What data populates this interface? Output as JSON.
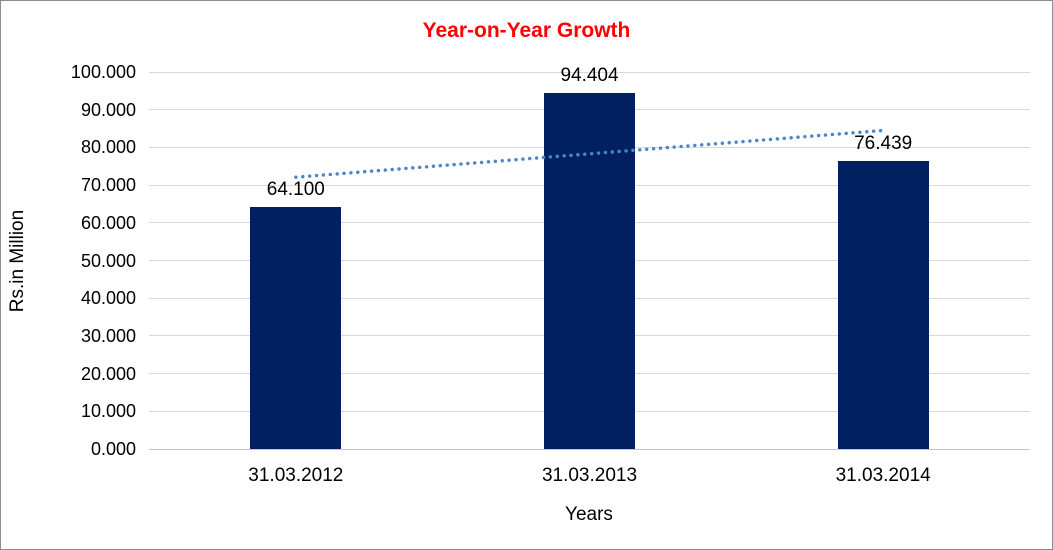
{
  "window": {
    "background": "#ffffff",
    "border_color": "#8c8c8c"
  },
  "chart_data": {
    "type": "bar",
    "title": "Year-on-Year Growth",
    "title_color": "#ff0000",
    "xlabel": "Years",
    "ylabel": "Rs.in Million",
    "categories": [
      "31.03.2012",
      "31.03.2013",
      "31.03.2014"
    ],
    "values": [
      64.1,
      94.404,
      76.439
    ],
    "data_labels": [
      "64.100",
      "94.404",
      "76.439"
    ],
    "bar_color": "#002060",
    "ylim": [
      0,
      100
    ],
    "ytick_step": 10,
    "ytick_labels": [
      "0.000",
      "10.000",
      "20.000",
      "30.000",
      "40.000",
      "50.000",
      "60.000",
      "70.000",
      "80.000",
      "90.000",
      "100.000"
    ],
    "grid": true,
    "gridline_color": "#d9d9d9",
    "axisline_color": "#c6c6c6",
    "legend": "none",
    "trendline": {
      "type": "linear",
      "style": "dotted",
      "color": "#4a86c8",
      "start_value": 72.1,
      "end_value": 84.5
    }
  }
}
